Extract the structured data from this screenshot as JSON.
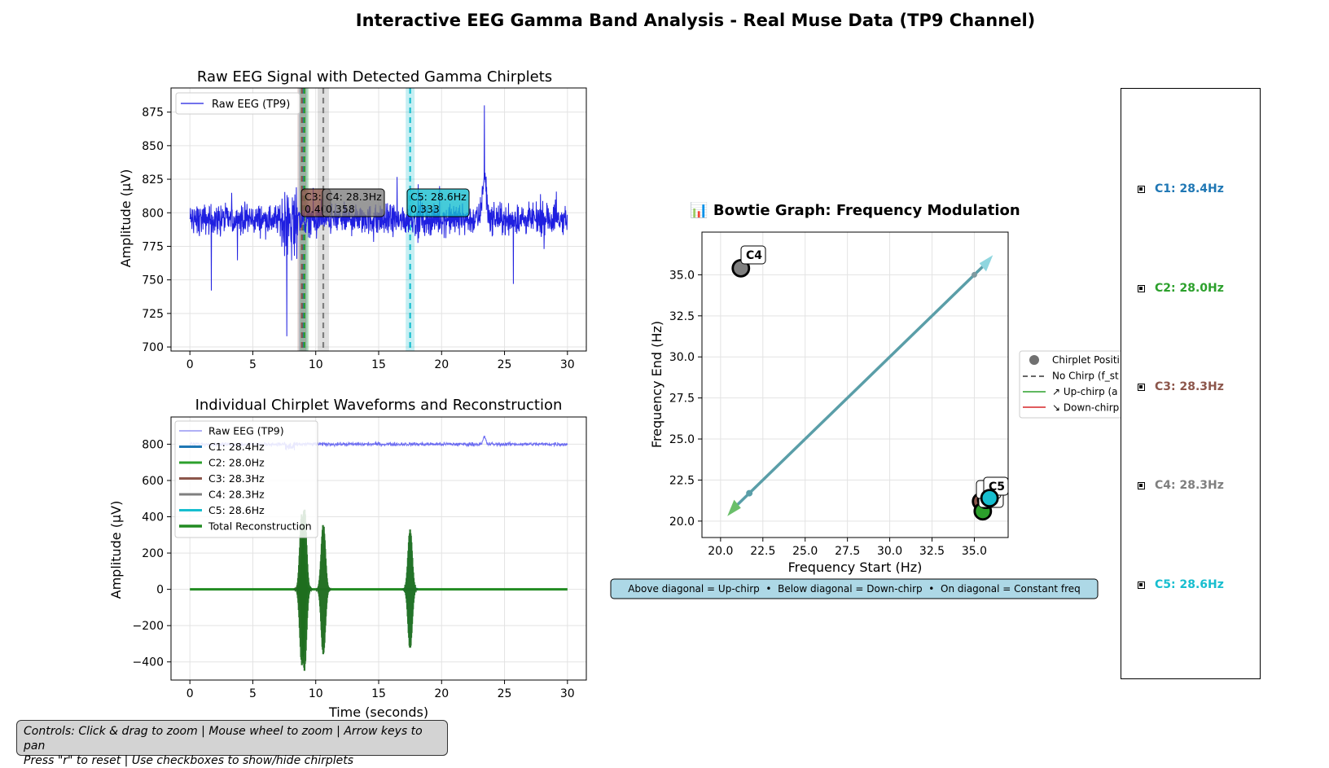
{
  "figure": {
    "title": "Interactive EEG Gamma Band Analysis - Real Muse Data (TP9 Channel)",
    "controls_text": [
      "Controls: Click & drag to zoom | Mouse wheel to zoom | Arrow keys to pan",
      "Press \"r\" to reset | Use checkboxes to show/hide chirplets"
    ]
  },
  "colors": {
    "raw": "#1f1fe0",
    "C1": "#1f77b4",
    "C2": "#2ca02c",
    "C3": "#8c564b",
    "C4": "#7f7f7f",
    "C5": "#17becf",
    "reconstruction": "#228b22",
    "bowtie_line": "#5a9ea8",
    "info_box": "#add8e6"
  },
  "checkboxes": [
    {
      "label": "C1: 28.4Hz",
      "color": "#1f77b4",
      "checked": true
    },
    {
      "label": "C2: 28.0Hz",
      "color": "#2ca02c",
      "checked": true
    },
    {
      "label": "C3: 28.3Hz",
      "color": "#8c564b",
      "checked": true
    },
    {
      "label": "C4: 28.3Hz",
      "color": "#7f7f7f",
      "checked": true
    },
    {
      "label": "C5: 28.6Hz",
      "color": "#17becf",
      "checked": true
    }
  ],
  "chart_data": [
    {
      "type": "line",
      "title": "Raw EEG Signal with Detected Gamma Chirplets",
      "xlabel": "",
      "ylabel": "Amplitude (μV)",
      "xlim": [
        -1.5,
        31.5
      ],
      "ylim": [
        697,
        893
      ],
      "xticks": [
        0,
        5,
        10,
        15,
        20,
        25,
        30
      ],
      "yticks": [
        700,
        725,
        750,
        775,
        800,
        825,
        850,
        875
      ],
      "grid": true,
      "legend": {
        "position": "top-left",
        "entries": [
          "Raw EEG (TP9)"
        ]
      },
      "series": [
        {
          "name": "Raw EEG (TP9)",
          "baseline": 795,
          "features": [
            {
              "t": 1.7,
              "value": 742
            },
            {
              "t": 7.7,
              "value": 708
            },
            {
              "t": 8.3,
              "value": 768
            },
            {
              "t": 23.4,
              "value": 880
            },
            {
              "t": 25.7,
              "value": 747
            }
          ]
        }
      ],
      "chirplet_markers": [
        {
          "id": "C1",
          "t": 9.0
        },
        {
          "id": "C2",
          "t": 9.1
        },
        {
          "id": "C3",
          "t": 8.9
        },
        {
          "id": "C4",
          "t": 10.6
        },
        {
          "id": "C5",
          "t": 17.5
        }
      ],
      "annotations": [
        {
          "id": "C3",
          "text": [
            "C3:",
            "0.40"
          ],
          "color": "#8c564b"
        },
        {
          "id": "C4",
          "text": [
            "C4: 28.3Hz",
            "0.358"
          ],
          "color": "#7f7f7f"
        },
        {
          "id": "C5",
          "text": [
            "C5: 28.6Hz",
            "0.333"
          ],
          "color": "#17becf"
        }
      ]
    },
    {
      "type": "line",
      "title": "Individual Chirplet Waveforms and Reconstruction",
      "xlabel": "Time (seconds)",
      "ylabel": "Amplitude (μV)",
      "xlim": [
        -1.5,
        31.5
      ],
      "ylim": [
        -500,
        950
      ],
      "xticks": [
        0,
        5,
        10,
        15,
        20,
        25,
        30
      ],
      "yticks": [
        -400,
        -200,
        0,
        200,
        400,
        600,
        800
      ],
      "grid": true,
      "legend": {
        "position": "top-left",
        "entries": [
          "Raw EEG (TP9)",
          "C1: 28.4Hz",
          "C2: 28.0Hz",
          "C3: 28.3Hz",
          "C4: 28.3Hz",
          "C5: 28.6Hz",
          "Total Reconstruction"
        ]
      },
      "series": [
        {
          "name": "Raw EEG (TP9)",
          "baseline": 800
        },
        {
          "name": "C1: 28.4Hz",
          "center": 9.0,
          "amplitude": 420
        },
        {
          "name": "C2: 28.0Hz",
          "center": 9.1,
          "amplitude": 380
        },
        {
          "name": "C3: 28.3Hz",
          "center": 8.9,
          "amplitude": 350
        },
        {
          "name": "C4: 28.3Hz",
          "center": 10.6,
          "amplitude": 360
        },
        {
          "name": "C5: 28.6Hz",
          "center": 17.5,
          "amplitude": 330
        },
        {
          "name": "Total Reconstruction",
          "bursts": [
            {
              "center": 8.9,
              "amplitude": 420
            },
            {
              "center": 9.1,
              "amplitude": 450
            },
            {
              "center": 10.6,
              "amplitude": 360
            },
            {
              "center": 17.5,
              "amplitude": 330
            }
          ]
        }
      ]
    },
    {
      "type": "scatter",
      "title": "📊 Bowtie Graph: Frequency Modulation",
      "xlabel": "Frequency Start (Hz)",
      "ylabel": "Frequency End (Hz)",
      "xlim": [
        18.9,
        37.0
      ],
      "ylim": [
        19.0,
        37.6
      ],
      "xticks": [
        20.0,
        22.5,
        25.0,
        27.5,
        30.0,
        32.5,
        35.0
      ],
      "yticks": [
        20.0,
        22.5,
        25.0,
        27.5,
        30.0,
        32.5,
        35.0
      ],
      "grid": true,
      "legend": {
        "position": "right",
        "entries": [
          "Chirplet Positi",
          "No Chirp (f_st",
          "↗ Up-chirp (a",
          "↘ Down-chirp"
        ]
      },
      "diagonal": {
        "from": [
          20.6,
          20.6
        ],
        "to": [
          35.9,
          35.9
        ]
      },
      "points": [
        {
          "id": "C4",
          "x": 21.2,
          "y": 35.4,
          "color": "#7f7f7f"
        },
        {
          "id": "C3",
          "x": 35.4,
          "y": 21.2,
          "color": "#8c564b"
        },
        {
          "id": "C2",
          "x": 35.5,
          "y": 20.6,
          "color": "#2ca02c"
        },
        {
          "id": "C1",
          "x": 35.7,
          "y": 21.3,
          "color": "#1f77b4"
        },
        {
          "id": "C5",
          "x": 35.9,
          "y": 21.4,
          "color": "#17becf"
        }
      ],
      "point_labels": [
        "C4",
        "C5",
        "2"
      ],
      "info_text": "Above diagonal = Up-chirp  •  Below diagonal = Down-chirp  •  On diagonal = Constant freq"
    }
  ]
}
